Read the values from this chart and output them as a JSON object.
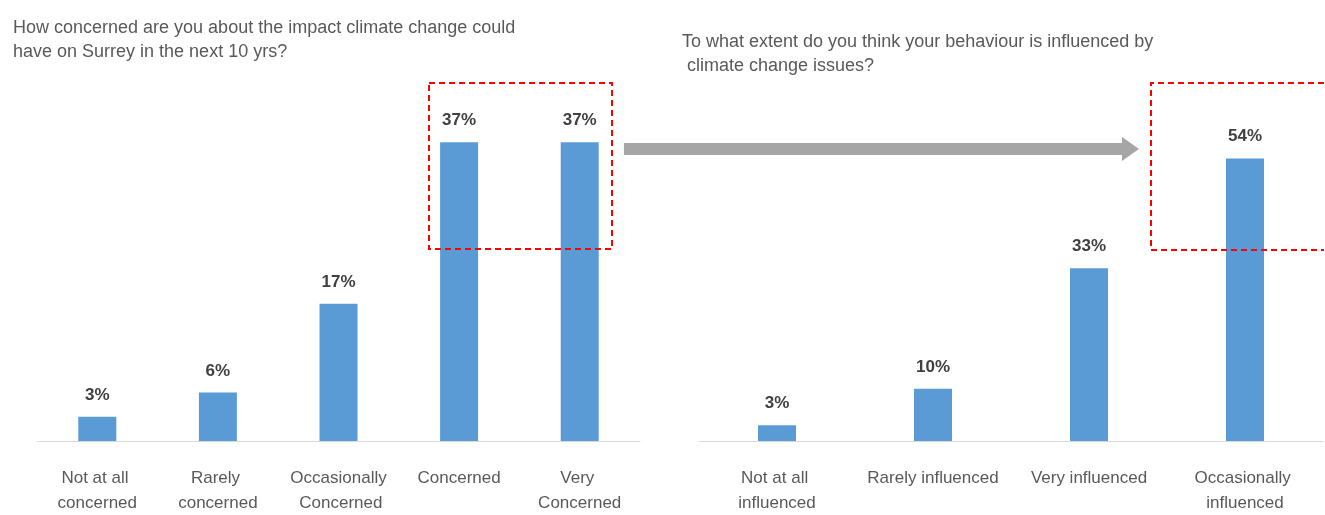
{
  "chart_data": [
    {
      "type": "bar",
      "title": "How concerned are you about the impact climate change could have on Surrey in the next 10 yrs?",
      "categories": [
        "Not at all concerned",
        "Rarely concerned",
        "Occasionally Concerned",
        "Concerned",
        "Very Concerned"
      ],
      "values": [
        3,
        6,
        17,
        37,
        37
      ],
      "value_labels": [
        "3%",
        "6%",
        "17%",
        "37%",
        "37%"
      ],
      "color": "#5b9bd5",
      "grid": false
    },
    {
      "type": "bar",
      "title": "To what extent do you think your behaviour is influenced by climate change issues?",
      "categories": [
        "Not at all influenced",
        "Rarely influenced",
        "Very influenced",
        "Occasionally influenced"
      ],
      "values": [
        3,
        10,
        33,
        54
      ],
      "value_labels": [
        "3%",
        "10%",
        "33%",
        "54%"
      ],
      "color": "#5b9bd5",
      "grid": false
    }
  ]
}
